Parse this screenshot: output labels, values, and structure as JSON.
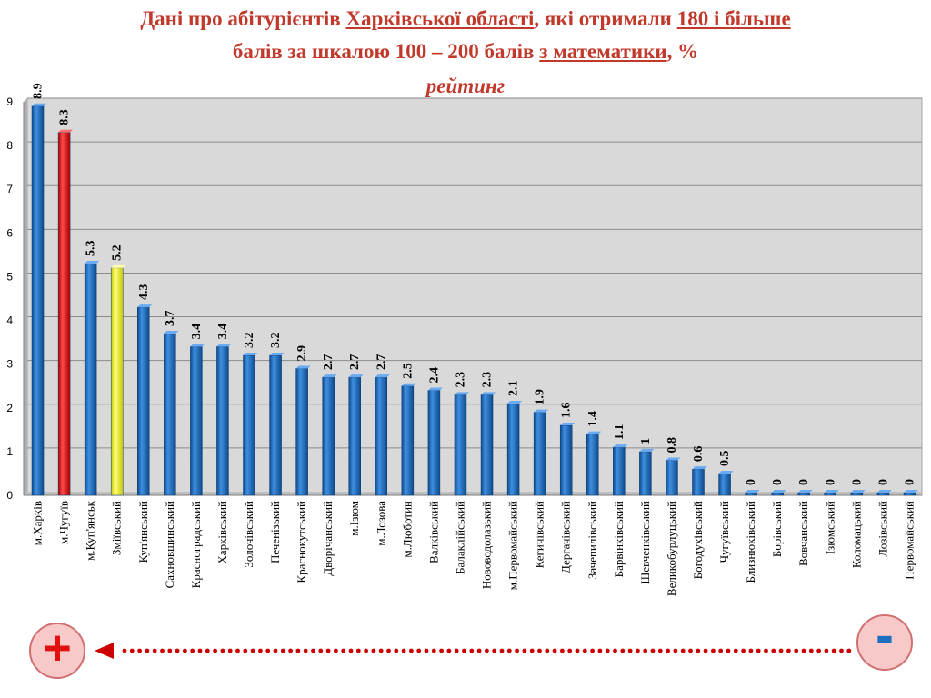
{
  "title": {
    "line1_a": "Дані про абітурієнтів ",
    "line1_b": "Харківської області",
    "line1_c": ", які отримали ",
    "line1_d": "180 і більше",
    "line2_a": "балів за шкалою 100 – 200 балів ",
    "line2_b": "з математики",
    "line2_c": ", %",
    "line3": "рейтинг"
  },
  "legend_signs": {
    "plus": "+",
    "minus": "-"
  },
  "colors": {
    "default_bar": "#1f6fc0",
    "highlight_red": "#e8191c",
    "highlight_yellow": "#ffff33",
    "arrow": "#cc0000",
    "plot_bg": "#d9d9d9"
  },
  "chart_data": {
    "type": "bar",
    "ylim": [
      0,
      9
    ],
    "yticks": [
      0,
      1,
      2,
      3,
      4,
      5,
      6,
      7,
      8,
      9
    ],
    "grid": true,
    "categories": [
      "м.Харків",
      "м.Чугуїв",
      "м.Куп'янськ",
      "Зміївський",
      "Куп'янський",
      "Сахновщинський",
      "Красноградський",
      "Харківський",
      "Золочівський",
      "Печенізький",
      "Краснокутський",
      "Дворічанський",
      "м.Ізюм",
      "м.Лозова",
      "м.Люботин",
      "Валківський",
      "Балаклійський",
      "Нововодолазький",
      "м.Первомайський",
      "Кегичівський",
      "Дергачівський",
      "Зачепилівський",
      "Барвінківський",
      "Шевченківський",
      "Великобурлуцький",
      "Богодухівський",
      "Чугуївський",
      "Близнюківський",
      "Борівський",
      "Вовчанський",
      "Ізюмський",
      "Коломацький",
      "Лозівський",
      "Первомайський"
    ],
    "values": [
      8.9,
      8.3,
      5.3,
      5.2,
      4.3,
      3.7,
      3.4,
      3.4,
      3.2,
      3.2,
      2.9,
      2.7,
      2.7,
      2.7,
      2.5,
      2.4,
      2.3,
      2.3,
      2.1,
      1.9,
      1.6,
      1.4,
      1.1,
      1,
      0.8,
      0.6,
      0.5,
      0,
      0,
      0,
      0,
      0,
      0,
      0
    ],
    "value_labels": [
      "8.9",
      "8.3",
      "5.3",
      "5.2",
      "4.3",
      "3.7",
      "3.4",
      "3.4",
      "3.2",
      "3.2",
      "2.9",
      "2.7",
      "2.7",
      "2.7",
      "2.5",
      "2.4",
      "2.3",
      "2.3",
      "2.1",
      "1.9",
      "1.6",
      "1.4",
      "1.1",
      "1",
      "0.8",
      "0.6",
      "0.5",
      "0",
      "0",
      "0",
      "0",
      "0",
      "0",
      "0"
    ],
    "highlight": {
      "1": "red",
      "3": "yellow"
    }
  }
}
